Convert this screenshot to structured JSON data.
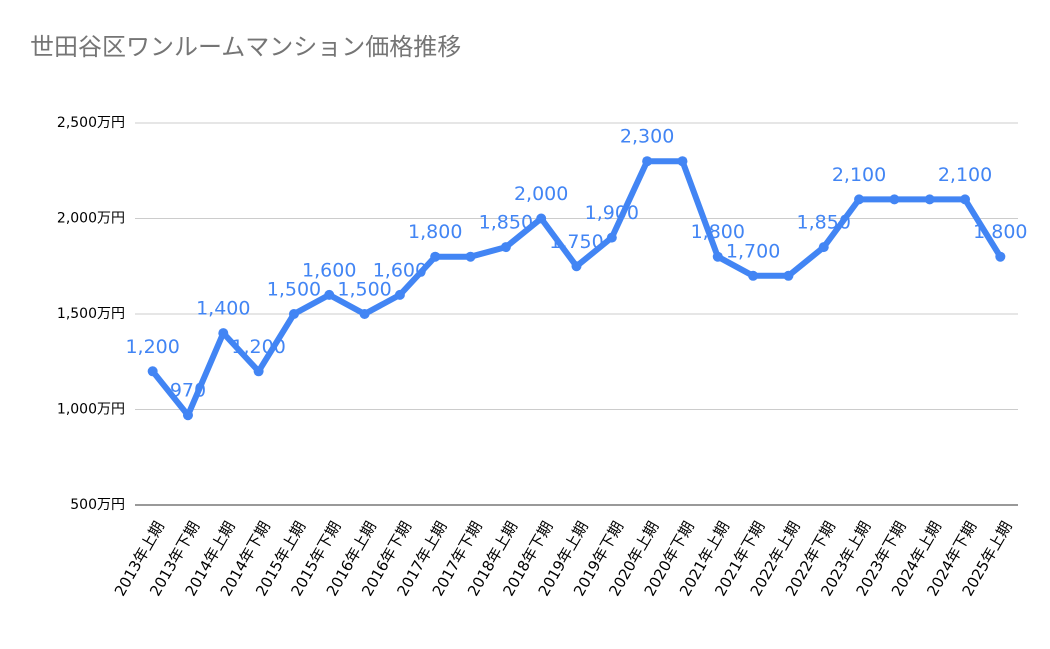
{
  "chart_data": {
    "type": "line",
    "title": "世田谷区ワンルームマンション価格推移",
    "categories": [
      "2013年上期",
      "2013年下期",
      "2014年上期",
      "2014年下期",
      "2015年上期",
      "2015年下期",
      "2016年上期",
      "2016年下期",
      "2017年上期",
      "2017年下期",
      "2018年上期",
      "2018年下期",
      "2019年上期",
      "2019年下期",
      "2020年上期",
      "2020年下期",
      "2021年上期",
      "2021年下期",
      "2022年上期",
      "2022年下期",
      "2023年上期",
      "2023年下期",
      "2024年上期",
      "2024年下期",
      "2025年上期"
    ],
    "series": [
      {
        "color": "#4285f4",
        "values": [
          1200,
          970,
          1400,
          1200,
          1500,
          1600,
          1500,
          1600,
          1800,
          1800,
          1850,
          2000,
          1750,
          1900,
          2300,
          2300,
          1800,
          1700,
          1700,
          1850,
          2100,
          2100,
          2100,
          2100,
          1800
        ],
        "value_labels": [
          "1,200",
          "970",
          "1,400",
          "1,200",
          "1,500",
          "1,600",
          "1,500",
          "1,600",
          "1,800",
          null,
          "1,850",
          "2,000",
          "1,750",
          "1,900",
          "2,300",
          null,
          "1,800",
          "1,700",
          null,
          "1,850",
          "2,100",
          null,
          null,
          "2,100",
          "1,800"
        ]
      }
    ],
    "ylim": [
      500,
      2500
    ],
    "yticks": [
      {
        "value": 500,
        "label": "500万円"
      },
      {
        "value": 1000,
        "label": "1,000万円"
      },
      {
        "value": 1500,
        "label": "1,500万円"
      },
      {
        "value": 2000,
        "label": "2,000万円"
      },
      {
        "value": 2500,
        "label": "2,500万円"
      }
    ],
    "grid": true
  }
}
